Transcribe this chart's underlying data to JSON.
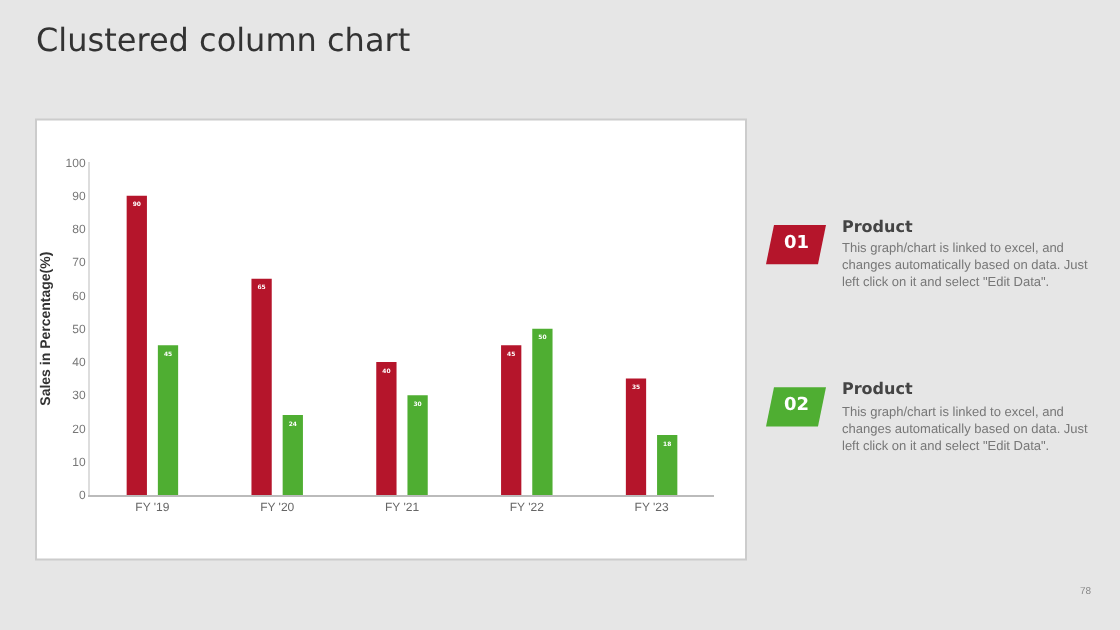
{
  "chart_data": {
    "type": "bar",
    "title": "Clustered column chart",
    "ylabel": "Sales in Percentage(%)",
    "categories": [
      "FY '19",
      "FY '20",
      "FY '21",
      "FY '22",
      "FY '23"
    ],
    "series": [
      {
        "name": "Product",
        "color": "#b5152b",
        "values": [
          90,
          65,
          40,
          45,
          35
        ]
      },
      {
        "name": "Product",
        "color": "#4fae32",
        "values": [
          45,
          24,
          30,
          50,
          18
        ]
      }
    ],
    "ylim": [
      0,
      100
    ],
    "yticks": [
      0,
      10,
      20,
      30,
      40,
      50,
      60,
      70,
      80,
      90,
      100
    ],
    "data_labels": true,
    "legend": "right",
    "annotations": [
      "01",
      "This graph/chart is linked to excel, and changes automatically based on data. Just left click on it and select \"Edit Data\".",
      "02",
      "This graph/chart is linked to excel, and changes automatically based on data. Just left click on it and select \"Edit Data\".",
      "78"
    ]
  }
}
